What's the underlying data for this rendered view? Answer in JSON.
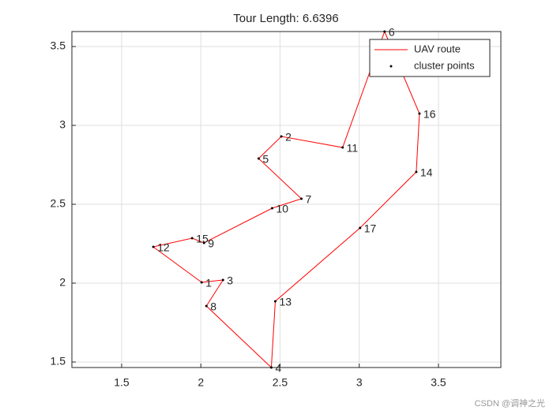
{
  "chart_data": {
    "type": "line",
    "title": "Tour Length: 6.6396",
    "xlim": [
      1.186,
      3.894
    ],
    "ylim": [
      1.465,
      3.595
    ],
    "xticks": [
      1.5,
      2,
      2.5,
      3,
      3.5
    ],
    "yticks": [
      1.5,
      2,
      2.5,
      3,
      3.5
    ],
    "grid": true,
    "legend": "top-right",
    "series": [
      {
        "name": "UAV route",
        "color": "#ff0000",
        "x": [
          2.005,
          2.14,
          2.035,
          2.445,
          2.47,
          3.005,
          3.36,
          3.38,
          3.16,
          3.06,
          2.895,
          2.508,
          2.365,
          2.635,
          2.45,
          2.02,
          1.945,
          1.7,
          2.005
        ],
        "values": [
          2.005,
          2.02,
          1.855,
          1.465,
          1.885,
          2.35,
          2.705,
          3.075,
          3.595,
          3.32,
          2.86,
          2.93,
          2.79,
          2.535,
          2.475,
          2.255,
          2.285,
          2.23,
          2.005
        ]
      },
      {
        "name": "cluster points",
        "color": "#000000",
        "labels": [
          "1",
          "2",
          "3",
          "4",
          "5",
          "6",
          "7",
          "8",
          "9",
          "10",
          "11",
          "12",
          "13",
          "14",
          "15",
          "16",
          "17"
        ],
        "x": [
          2.005,
          2.508,
          2.14,
          2.445,
          2.365,
          3.16,
          2.635,
          2.035,
          2.02,
          2.45,
          2.895,
          1.7,
          2.47,
          3.36,
          1.945,
          3.38,
          3.005
        ],
        "values": [
          2.005,
          2.93,
          2.02,
          1.465,
          2.79,
          3.595,
          2.535,
          1.855,
          2.255,
          2.475,
          2.86,
          2.23,
          1.885,
          2.705,
          2.285,
          3.075,
          2.35
        ]
      }
    ],
    "watermark": "CSDN @调神之光"
  }
}
